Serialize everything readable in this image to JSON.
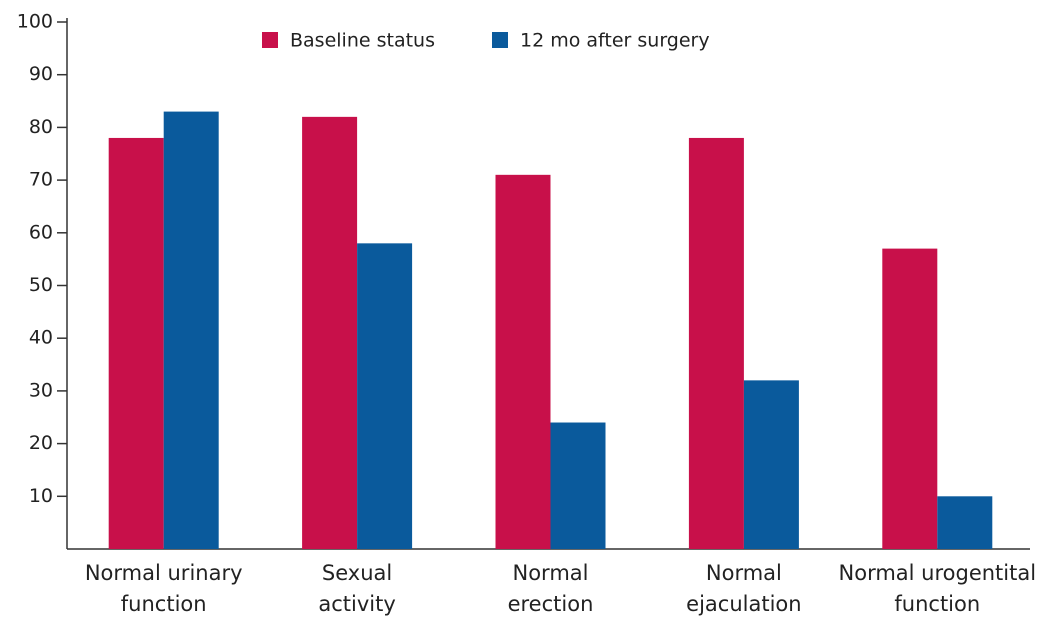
{
  "chart_data": {
    "type": "bar",
    "categories": [
      "Normal urinary\nfunction",
      "Sexual\nactivity",
      "Normal\nerection",
      "Normal\nejaculation",
      "Normal urogentital\nfunction"
    ],
    "series": [
      {
        "name": "Baseline status",
        "color": "#c8104a",
        "values": [
          78,
          82,
          71,
          78,
          57
        ]
      },
      {
        "name": "12 mo after surgery",
        "color": "#0a5a9c",
        "values": [
          83,
          58,
          24,
          32,
          10
        ]
      }
    ],
    "ylim": [
      0,
      100
    ],
    "yticks": [
      10,
      20,
      30,
      40,
      50,
      60,
      70,
      80,
      90,
      100
    ]
  }
}
